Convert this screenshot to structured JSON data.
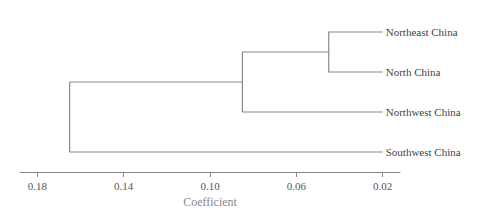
{
  "chart_data": {
    "type": "dendrogram",
    "xlabel": "Coefficient",
    "categories": [
      "Northeast China",
      "North China",
      "Northwest China",
      "Southwest China"
    ],
    "leaf_value": 0.02,
    "join_values": [
      0.045,
      0.085,
      0.165
    ],
    "xlim": [
      0.188,
      0.012
    ],
    "xticks": [
      0.18,
      0.14,
      {
        "value": 0.1,
        "label": "0.10"
      },
      0.06,
      0.02
    ],
    "color": "#888888",
    "grid": false
  }
}
